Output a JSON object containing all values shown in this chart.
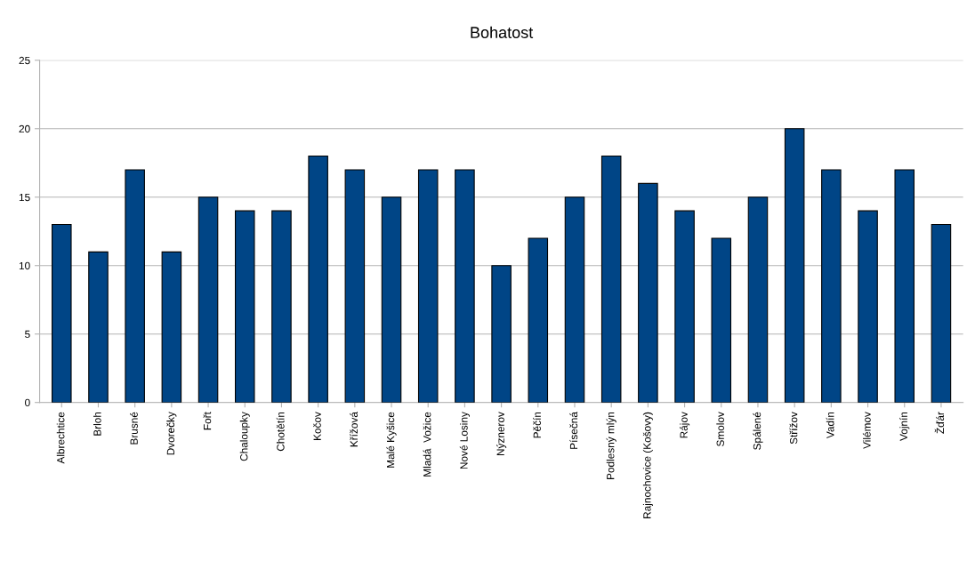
{
  "chart_data": {
    "type": "bar",
    "title": "Bohatost",
    "categories": [
      "Albrechtice",
      "Brloh",
      "Brusné",
      "Dvorečky",
      "Fořt",
      "Chaloupky",
      "Chotětín",
      "Kočov",
      "Křížová",
      "Malé Kyšice",
      "Mladá  Vožice",
      "Nové Losiny",
      "Nýznerov",
      "Pěčín",
      "Písečná",
      "Podlesný mlýn",
      "Rajnochovice (Košovy)",
      "Rájov",
      "Smolov",
      "Spálené",
      "Střížov",
      "Vadín",
      "Vilémov",
      "Vojnín",
      "Žďár"
    ],
    "values": [
      13,
      11,
      17,
      11,
      15,
      14,
      14,
      18,
      17,
      15,
      17,
      17,
      10,
      12,
      15,
      18,
      16,
      14,
      12,
      15,
      20,
      17,
      14,
      17,
      13
    ],
    "color": "#004586",
    "ylim": [
      0,
      25
    ],
    "yticks": [
      0,
      5,
      10,
      15,
      20,
      25
    ],
    "grid": "y",
    "legend": false
  }
}
